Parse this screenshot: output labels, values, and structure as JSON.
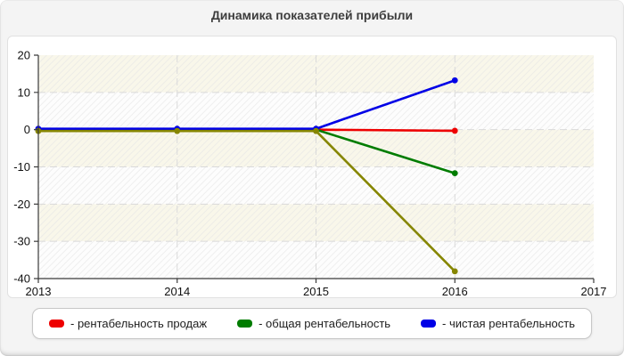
{
  "page": {
    "title": "Динамика показателей прибыли"
  },
  "chart_data": {
    "type": "line",
    "title": "Динамика показателей прибыли",
    "x": [
      2013,
      2014,
      2015,
      2016
    ],
    "x_ticks": [
      "2013",
      "2014",
      "2015",
      "2016",
      "2017"
    ],
    "xlim": [
      2013,
      2017
    ],
    "y_ticks": [
      20,
      10,
      0,
      -10,
      -20,
      -30,
      -40
    ],
    "ylim": [
      -40,
      20
    ],
    "grid": "dashed",
    "legend_position": "bottom",
    "series": [
      {
        "name": "рентабельность продаж",
        "color": "#ee0000",
        "values": [
          0,
          0,
          0,
          -0.3
        ]
      },
      {
        "name": "общая рентабельность",
        "color": "#007c00",
        "values": [
          0,
          0,
          0,
          -11.7
        ]
      },
      {
        "name": "чистая рентабельность",
        "color": "#0000e6",
        "values": [
          0,
          0,
          0,
          13
        ]
      },
      {
        "name": "",
        "color": "#868600",
        "values": [
          0,
          0,
          0,
          -37.7
        ]
      }
    ]
  },
  "legend": {
    "items": [
      {
        "label": "- рентабельность продаж",
        "color": "#ee0000"
      },
      {
        "label": "- общая рентабельность",
        "color": "#007c00"
      },
      {
        "label": "- чистая рентабельность",
        "color": "#0000e6"
      }
    ]
  },
  "colors": {
    "page_bg": "#f4f4f4",
    "panel_bg": "#ffffff",
    "band_cream": "#f9f7ea",
    "band_white": "#fdfdfd",
    "grid": "#d9d9d9",
    "axis": "#3a3a3a",
    "tick_text": "#111111"
  }
}
